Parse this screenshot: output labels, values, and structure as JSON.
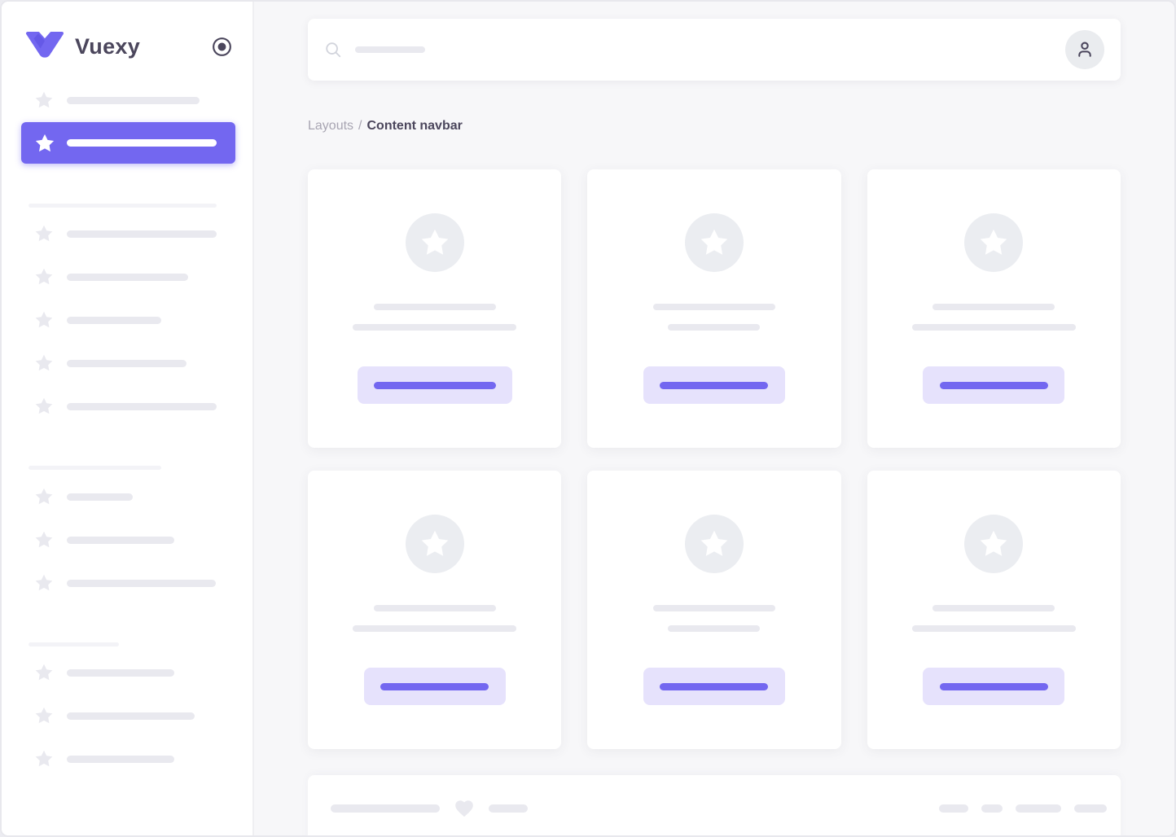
{
  "app": {
    "name": "Vuexy"
  },
  "colors": {
    "accent": "#7367f0",
    "accent_soft": "#e6e2fc",
    "dark": "#4b465c",
    "muted": "#a8a5b2",
    "skeleton": "#e9e9ef",
    "skeleton_light": "#f3f3f7",
    "circle_fill": "#ebedf1",
    "main_bg": "#f7f7f9",
    "sidebar_bg": "#ffffff",
    "frame_border": "#e8e8ed",
    "avatar_bg": "#eaecef",
    "icon_light": "#d2d4dc"
  },
  "sidebar": {
    "logo_text": "Vuexy",
    "icons": {
      "logo": "vuexy-v-icon",
      "collapse": "record-circle-icon",
      "item": "star-icon"
    },
    "ghost_item_bar_width": 163,
    "active_item_bar_width": 184,
    "sections": [
      {
        "header_bar_width": 231,
        "item_bar_widths": [
          184,
          149,
          116,
          147,
          184
        ]
      },
      {
        "header_bar_width": 163,
        "item_bar_widths": [
          81,
          132,
          183
        ]
      },
      {
        "header_bar_width": 111,
        "item_bar_widths": [
          132,
          157,
          132
        ]
      }
    ]
  },
  "navbar": {
    "search_icon": "search-icon",
    "search_placeholder_bar_width": 86,
    "avatar_icon": "person-icon"
  },
  "breadcrumb": {
    "parent": "Layouts",
    "separator": "/",
    "current": "Content navbar"
  },
  "cards": [
    {
      "title_bar_width": 150,
      "subtitle_bar_width": 201,
      "button_width": 190,
      "button_bar_width": 150
    },
    {
      "title_bar_width": 150,
      "subtitle_bar_width": 113,
      "button_width": 174,
      "button_bar_width": 133
    },
    {
      "title_bar_width": 150,
      "subtitle_bar_width": 201,
      "button_width": 174,
      "button_bar_width": 133
    },
    {
      "title_bar_width": 150,
      "subtitle_bar_width": 201,
      "button_width": 174,
      "button_bar_width": 133
    },
    {
      "title_bar_width": 150,
      "subtitle_bar_width": 113,
      "button_width": 174,
      "button_bar_width": 133
    },
    {
      "title_bar_width": 150,
      "subtitle_bar_width": 201,
      "button_width": 174,
      "button_bar_width": 133
    }
  ],
  "footer": {
    "heart_icon": "heart-icon",
    "left_bar_widths": [
      134,
      48
    ],
    "right_bar_widths": [
      36,
      26,
      56,
      40
    ]
  }
}
